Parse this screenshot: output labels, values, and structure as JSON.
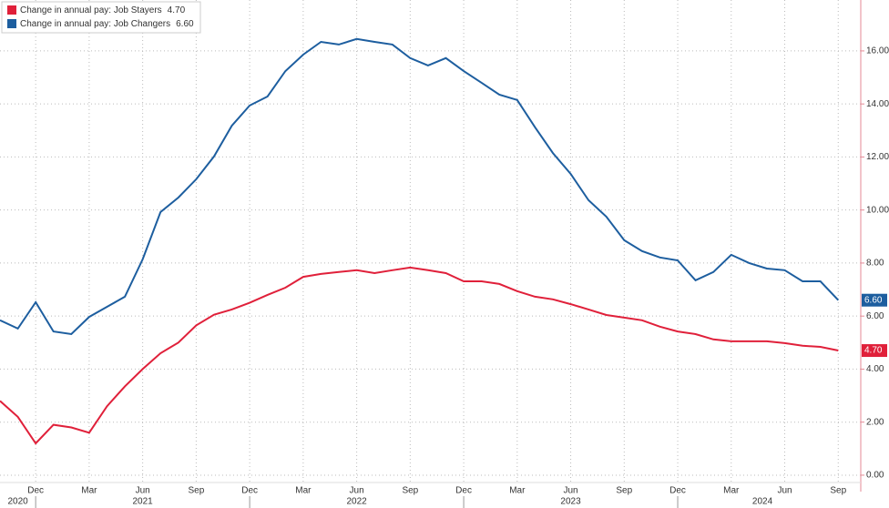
{
  "chart_data": {
    "type": "line",
    "categories": [
      null,
      null,
      "Dec",
      null,
      null,
      "Mar",
      null,
      null,
      "Jun",
      null,
      null,
      "Sep",
      null,
      null,
      "Dec",
      null,
      null,
      "Mar",
      null,
      null,
      "Jun",
      null,
      null,
      "Sep",
      null,
      null,
      "Dec",
      null,
      null,
      "Mar",
      null,
      null,
      "Jun",
      null,
      null,
      "Sep",
      null,
      null,
      "Dec",
      null,
      null,
      "Mar",
      null,
      null,
      "Jun",
      null,
      null,
      "Sep"
    ],
    "years": [
      "2020",
      "2021",
      "2022",
      "2023",
      "2024"
    ],
    "series": [
      {
        "name": "Change in annual pay: Job Stayers",
        "color": "#e0203a",
        "values": [
          2.8,
          2.2,
          1.2,
          1.9,
          1.8,
          1.6,
          2.6,
          3.35,
          4.0,
          4.6,
          5.0,
          5.65,
          6.05,
          6.25,
          6.5,
          6.8,
          7.07,
          7.48,
          7.59,
          7.66,
          7.73,
          7.62,
          7.73,
          7.83,
          7.73,
          7.62,
          7.31,
          7.31,
          7.21,
          6.94,
          6.73,
          6.63,
          6.45,
          6.25,
          6.04,
          5.94,
          5.84,
          5.6,
          5.42,
          5.32,
          5.12,
          5.05,
          5.05,
          5.05,
          4.98,
          4.88,
          4.84,
          4.7
        ],
        "value_labels": [
          null,
          null,
          null,
          null,
          null,
          null,
          null,
          null,
          null,
          null,
          null,
          null,
          null,
          null,
          null,
          null,
          null,
          null,
          null,
          null,
          null,
          null,
          null,
          null,
          null,
          null,
          null,
          null,
          null,
          null,
          null,
          null,
          null,
          null,
          null,
          null,
          null,
          null,
          null,
          null,
          null,
          null,
          null,
          null,
          null,
          null,
          null,
          "4.70"
        ]
      },
      {
        "name": "Change in annual pay: Job Changers",
        "color": "#1d5e9f",
        "values": [
          5.84,
          5.53,
          6.52,
          5.42,
          5.32,
          5.97,
          6.35,
          6.73,
          8.14,
          9.92,
          10.47,
          11.16,
          12.02,
          13.18,
          13.94,
          14.28,
          15.24,
          15.86,
          16.34,
          16.24,
          16.45,
          16.34,
          16.24,
          15.73,
          15.45,
          15.73,
          15.24,
          14.8,
          14.35,
          14.15,
          13.12,
          12.15,
          11.36,
          10.37,
          9.75,
          8.86,
          8.45,
          8.21,
          8.1,
          7.35,
          7.66,
          8.31,
          8.0,
          7.79,
          7.73,
          7.31,
          7.31,
          6.6
        ],
        "value_labels": [
          null,
          null,
          null,
          null,
          null,
          null,
          null,
          null,
          null,
          null,
          null,
          null,
          null,
          null,
          null,
          null,
          null,
          null,
          null,
          null,
          null,
          null,
          null,
          null,
          null,
          null,
          null,
          null,
          null,
          null,
          null,
          null,
          null,
          null,
          null,
          null,
          null,
          null,
          null,
          null,
          null,
          null,
          null,
          null,
          null,
          null,
          null,
          "6.60"
        ]
      }
    ],
    "ylim": [
      -0.62,
      17.92
    ],
    "yticks": [
      {
        "value": 0,
        "label": "0.00"
      },
      {
        "value": 2,
        "label": "2.00"
      },
      {
        "value": 4,
        "label": "4.00"
      },
      {
        "value": 6,
        "label": "6.00"
      },
      {
        "value": 8,
        "label": "8.00"
      },
      {
        "value": 10,
        "label": "10.00"
      },
      {
        "value": 12,
        "label": "12.00"
      },
      {
        "value": 14,
        "label": "14.00"
      },
      {
        "value": 16,
        "label": "16.00"
      }
    ],
    "grid": true
  }
}
